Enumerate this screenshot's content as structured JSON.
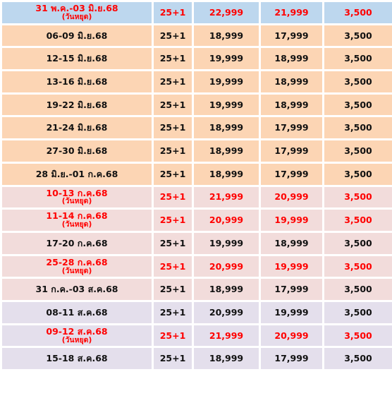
{
  "table": {
    "rows": [
      {
        "date": "31 พ.ค.-03 มิ.ย.68",
        "note": "(วันหยุด)",
        "pax": "25+1",
        "price_1": "22,999",
        "price_2": "21,999",
        "price_3": "3,500"
      },
      {
        "date": "06-09 มิ.ย.68",
        "pax": "25+1",
        "price_1": "18,999",
        "price_2": "17,999",
        "price_3": "3,500"
      },
      {
        "date": "12-15 มิ.ย.68",
        "pax": "25+1",
        "price_1": "19,999",
        "price_2": "18,999",
        "price_3": "3,500"
      },
      {
        "date": "13-16 มิ.ย.68",
        "pax": "25+1",
        "price_1": "19,999",
        "price_2": "18,999",
        "price_3": "3,500"
      },
      {
        "date": "19-22 มิ.ย.68",
        "pax": "25+1",
        "price_1": "19,999",
        "price_2": "18,999",
        "price_3": "3,500"
      },
      {
        "date": "21-24 มิ.ย.68",
        "pax": "25+1",
        "price_1": "18,999",
        "price_2": "17,999",
        "price_3": "3,500"
      },
      {
        "date": "27-30 มิ.ย.68",
        "pax": "25+1",
        "price_1": "18,999",
        "price_2": "17,999",
        "price_3": "3,500"
      },
      {
        "date": "28 มิ.ย.-01 ก.ค.68",
        "pax": "25+1",
        "price_1": "18,999",
        "price_2": "17,999",
        "price_3": "3,500"
      },
      {
        "date": "10-13 ก.ค.68",
        "note": "(วันหยุด)",
        "pax": "25+1",
        "price_1": "21,999",
        "price_2": "20,999",
        "price_3": "3,500"
      },
      {
        "date": "11-14 ก.ค.68",
        "note": "(วันหยุด)",
        "pax": "25+1",
        "price_1": "20,999",
        "price_2": "19,999",
        "price_3": "3,500"
      },
      {
        "date": "17-20 ก.ค.68",
        "pax": "25+1",
        "price_1": "19,999",
        "price_2": "18,999",
        "price_3": "3,500"
      },
      {
        "date": "25-28 ก.ค.68",
        "note": "(วันหยุด)",
        "pax": "25+1",
        "price_1": "20,999",
        "price_2": "19,999",
        "price_3": "3,500"
      },
      {
        "date": "31 ก.ค.-03 ส.ค.68",
        "pax": "25+1",
        "price_1": "18,999",
        "price_2": "17,999",
        "price_3": "3,500"
      },
      {
        "date": "08-11 ส.ค.68",
        "pax": "25+1",
        "price_1": "20,999",
        "price_2": "19,999",
        "price_3": "3,500"
      },
      {
        "date": "09-12 ส.ค.68",
        "note": "(วันหยุด)",
        "pax": "25+1",
        "price_1": "21,999",
        "price_2": "20,999",
        "price_3": "3,500"
      },
      {
        "date": "15-18 ส.ค.68",
        "pax": "25+1",
        "price_1": "18,999",
        "price_2": "17,999",
        "price_3": "3,500"
      }
    ]
  }
}
